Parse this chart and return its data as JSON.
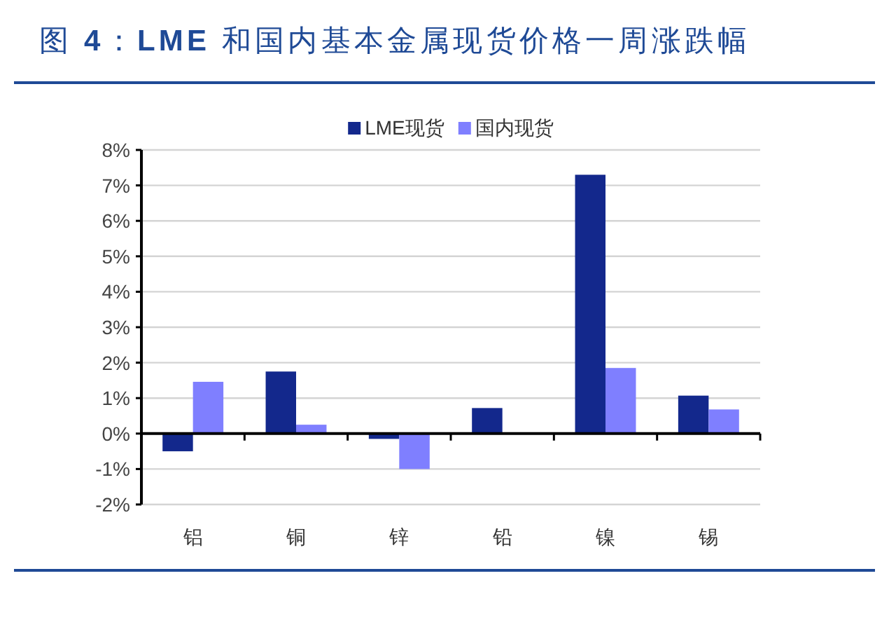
{
  "chart_data": {
    "type": "bar",
    "title": "图 4：LME 和国内基本金属现货价格一周涨跌幅",
    "categories": [
      "铝",
      "铜",
      "锌",
      "铅",
      "镍",
      "锡"
    ],
    "series": [
      {
        "name": "LME现货",
        "color": "#13288c",
        "values": [
          -0.5,
          1.75,
          -0.15,
          0.72,
          7.3,
          1.07
        ]
      },
      {
        "name": "国内现货",
        "color": "#7f7fff",
        "values": [
          1.46,
          0.25,
          -1.0,
          null,
          1.85,
          0.68
        ]
      }
    ],
    "ylim": [
      -2,
      8
    ],
    "yticks": [
      {
        "value": -2,
        "label": "-2%"
      },
      {
        "value": -1,
        "label": "-1%"
      },
      {
        "value": 0,
        "label": "0%"
      },
      {
        "value": 1,
        "label": "1%"
      },
      {
        "value": 2,
        "label": "2%"
      },
      {
        "value": 3,
        "label": "3%"
      },
      {
        "value": 4,
        "label": "4%"
      },
      {
        "value": 5,
        "label": "5%"
      },
      {
        "value": 6,
        "label": "6%"
      },
      {
        "value": 7,
        "label": "7%"
      },
      {
        "value": 8,
        "label": "8%"
      }
    ],
    "grid": "y",
    "legend": "top"
  }
}
